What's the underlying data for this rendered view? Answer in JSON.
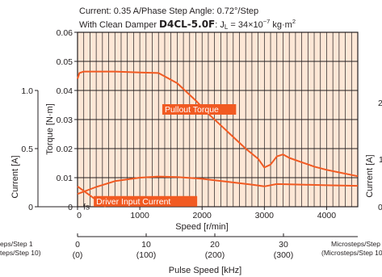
{
  "header": {
    "line1": "Current: 0.35 A/Phase  Step Angle: 0.72°/Step",
    "line2_prefix": "With Clean Damper ",
    "model": "D4CL-5.0F",
    "line2_suffix": ": J",
    "jl_sub": "L",
    "jl_value": " = 34×10",
    "jl_exp": "−7",
    "jl_unit": " kg·m",
    "jl_unit_exp": "2"
  },
  "axes": {
    "torque_label": "Torque [N·m]",
    "current_label": "Current [A]",
    "speed_label": "Speed [r/min]",
    "pulse_label": "Pulse Speed [kHz]",
    "microsteps_left_1": "eps/Step 1",
    "microsteps_left_2": "teps/Step 10)",
    "microsteps_right_1": "Microsteps/Step 1",
    "microsteps_right_2": "(Microsteps/Step 10",
    "right_tick_top": "2",
    "right_tick_mid": "1",
    "right_tick_bot": "0",
    "right_current_label": "Current [A]",
    "fs_label": "fs"
  },
  "chart_data": {
    "type": "line",
    "xlabel": "Speed [r/min]",
    "ylabel": "Torque [N·m]",
    "y2label": "Current [A]",
    "xlim": [
      0,
      4500
    ],
    "ylim": [
      0,
      0.06
    ],
    "y2lim": [
      0,
      1.5
    ],
    "grid": true,
    "x_ticks": [
      "0",
      "1000",
      "2000",
      "3000",
      "4000"
    ],
    "y_ticks": [
      "0",
      "0.01",
      "0.02",
      "0.03",
      "0.04",
      "0.05",
      "0.06"
    ],
    "y2_ticks": [
      "0",
      "0.5",
      "1.0"
    ],
    "pulse_ticks": [
      {
        "top": "0",
        "bottom": "(0)"
      },
      {
        "top": "10",
        "bottom": "(100)"
      },
      {
        "top": "20",
        "bottom": "(200)"
      },
      {
        "top": "30",
        "bottom": "(300)"
      }
    ],
    "series": [
      {
        "name": "Pullout Torque",
        "axis": "torque",
        "x": [
          0,
          30,
          100,
          300,
          600,
          1000,
          1300,
          1600,
          1900,
          2100,
          2300,
          2500,
          2700,
          2900,
          3000,
          3100,
          3200,
          3300,
          3400,
          3600,
          3800,
          4000,
          4200,
          4500
        ],
        "y": [
          0.044,
          0.046,
          0.0465,
          0.0465,
          0.0465,
          0.0462,
          0.046,
          0.0425,
          0.0365,
          0.032,
          0.028,
          0.024,
          0.02,
          0.0165,
          0.0135,
          0.0145,
          0.0173,
          0.018,
          0.0168,
          0.0153,
          0.0138,
          0.0127,
          0.0118,
          0.0105
        ]
      },
      {
        "name": "Driver Input Current",
        "axis": "current",
        "x": [
          0,
          300,
          600,
          1000,
          1300,
          1600,
          2000,
          2400,
          2800,
          3000,
          3200,
          3600,
          4000,
          4500
        ],
        "y": [
          0.11,
          0.17,
          0.22,
          0.25,
          0.26,
          0.255,
          0.24,
          0.215,
          0.19,
          0.175,
          0.195,
          0.19,
          0.185,
          0.18
        ]
      },
      {
        "name": "fs",
        "axis": "current",
        "x": [
          0,
          450
        ],
        "y": [
          0.175,
          0.0
        ]
      }
    ],
    "annotations": [
      "Pullout Torque",
      "Driver Input Current",
      "fs"
    ],
    "colors": {
      "curve": "#f15a22",
      "grid": "#231f20",
      "plot_bg": "#fde7d6"
    }
  }
}
